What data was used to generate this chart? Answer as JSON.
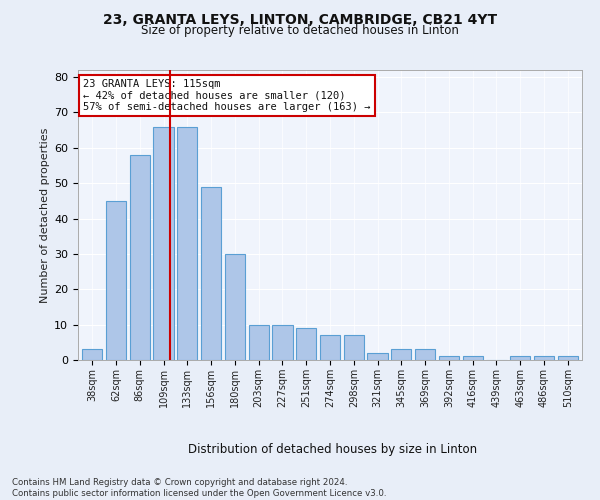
{
  "title": "23, GRANTA LEYS, LINTON, CAMBRIDGE, CB21 4YT",
  "subtitle": "Size of property relative to detached houses in Linton",
  "xlabel": "Distribution of detached houses by size in Linton",
  "ylabel": "Number of detached properties",
  "categories": [
    "38sqm",
    "62sqm",
    "86sqm",
    "109sqm",
    "133sqm",
    "156sqm",
    "180sqm",
    "203sqm",
    "227sqm",
    "251sqm",
    "274sqm",
    "298sqm",
    "321sqm",
    "345sqm",
    "369sqm",
    "392sqm",
    "416sqm",
    "439sqm",
    "463sqm",
    "486sqm",
    "510sqm"
  ],
  "values": [
    3,
    45,
    58,
    66,
    66,
    49,
    30,
    10,
    10,
    9,
    7,
    7,
    2,
    3,
    3,
    1,
    1,
    0,
    1,
    1,
    1
  ],
  "bar_color": "#aec6e8",
  "bar_edge_color": "#5a9fd4",
  "annotation_text": "23 GRANTA LEYS: 115sqm\n← 42% of detached houses are smaller (120)\n57% of semi-detached houses are larger (163) →",
  "ylim": [
    0,
    82
  ],
  "yticks": [
    0,
    10,
    20,
    30,
    40,
    50,
    60,
    70,
    80
  ],
  "footer": "Contains HM Land Registry data © Crown copyright and database right 2024.\nContains public sector information licensed under the Open Government Licence v3.0.",
  "bg_color": "#e8eef8",
  "plot_bg_color": "#f0f4fc"
}
